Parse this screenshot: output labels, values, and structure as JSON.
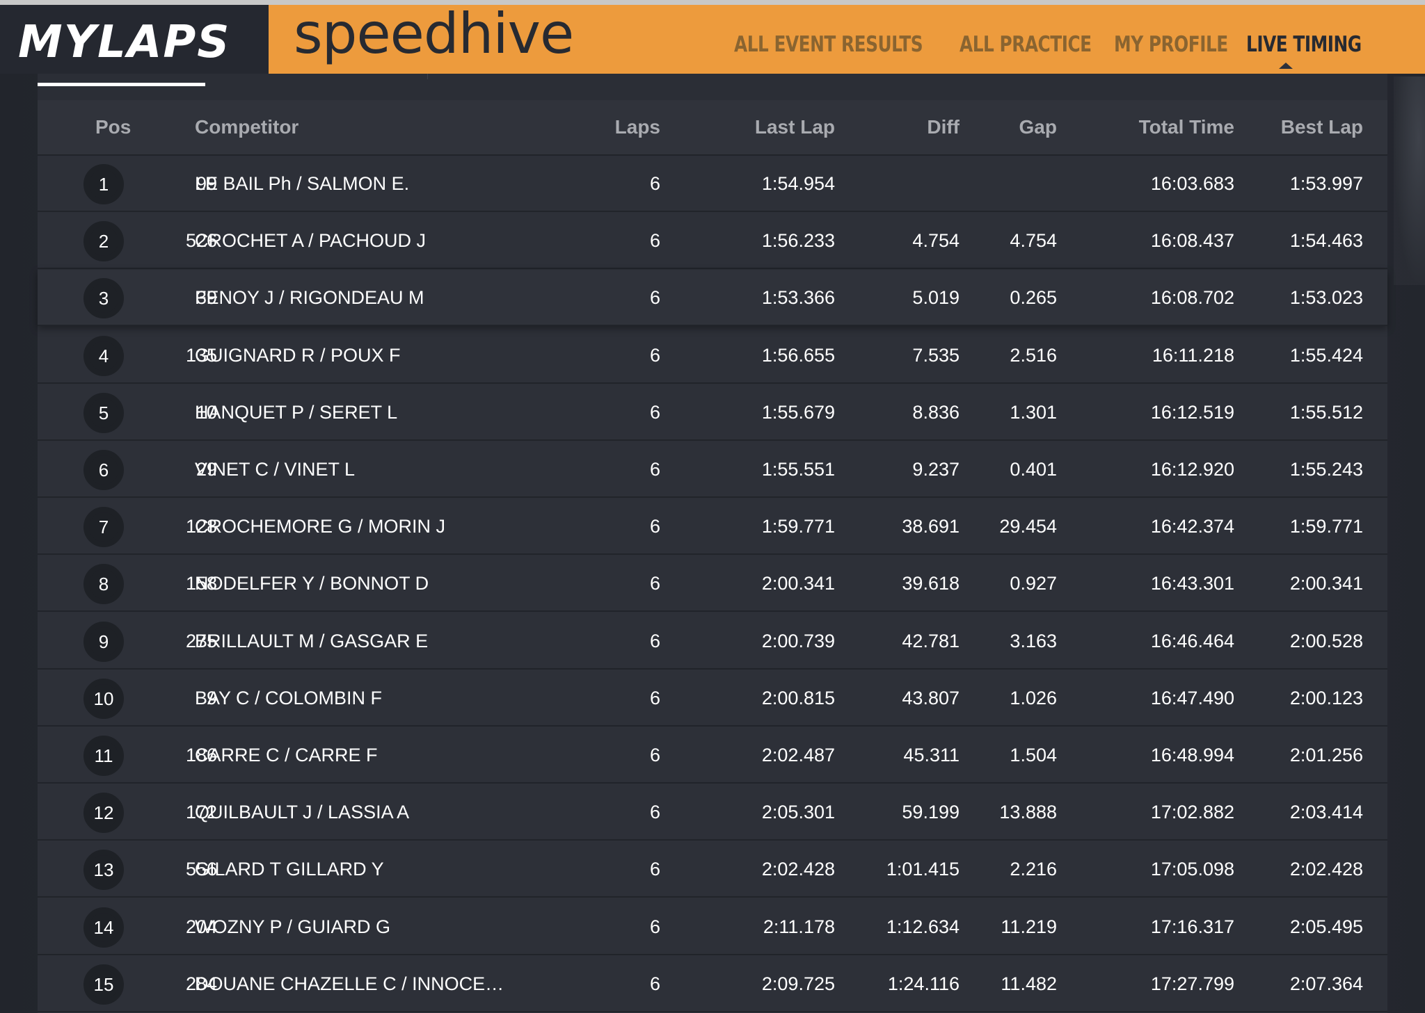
{
  "brand": {
    "name": "MYLAPS",
    "product": "speedhive"
  },
  "nav": {
    "items": [
      "ALL EVENT RESULTS",
      "ALL PRACTICE",
      "MY PROFILE",
      "LIVE TIMING"
    ],
    "active": "LIVE TIMING"
  },
  "colors": {
    "accent": "#ed9b3d",
    "background": "#2d3038"
  },
  "table": {
    "headers": {
      "pos": "Pos",
      "competitor": "Competitor",
      "laps": "Laps",
      "last_lap": "Last Lap",
      "diff": "Diff",
      "gap": "Gap",
      "total_time": "Total Time",
      "best_lap": "Best Lap"
    },
    "rows": [
      {
        "pos": "1",
        "num": "99",
        "competitor": "LE BAIL Ph / SALMON E.",
        "laps": "6",
        "last_lap": "1:54.954",
        "diff": "",
        "gap": "",
        "total_time": "16:03.683",
        "best_lap": "1:53.997"
      },
      {
        "pos": "2",
        "num": "526",
        "competitor": "CROCHET A / PACHOUD J",
        "laps": "6",
        "last_lap": "1:56.233",
        "diff": "4.754",
        "gap": "4.754",
        "total_time": "16:08.437",
        "best_lap": "1:54.463"
      },
      {
        "pos": "3",
        "num": "39",
        "competitor": "FENOY J / RIGONDEAU M",
        "laps": "6",
        "last_lap": "1:53.366",
        "diff": "5.019",
        "gap": "0.265",
        "total_time": "16:08.702",
        "best_lap": "1:53.023"
      },
      {
        "pos": "4",
        "num": "135",
        "competitor": "GUIGNARD R / POUX F",
        "laps": "6",
        "last_lap": "1:56.655",
        "diff": "7.535",
        "gap": "2.516",
        "total_time": "16:11.218",
        "best_lap": "1:55.424"
      },
      {
        "pos": "5",
        "num": "10",
        "competitor": "HANQUET P / SERET L",
        "laps": "6",
        "last_lap": "1:55.679",
        "diff": "8.836",
        "gap": "1.301",
        "total_time": "16:12.519",
        "best_lap": "1:55.512"
      },
      {
        "pos": "6",
        "num": "29",
        "competitor": "VINET C / VINET L",
        "laps": "6",
        "last_lap": "1:55.551",
        "diff": "9.237",
        "gap": "0.401",
        "total_time": "16:12.920",
        "best_lap": "1:55.243"
      },
      {
        "pos": "7",
        "num": "128",
        "competitor": "CROCHEMORE G / MORIN J",
        "laps": "6",
        "last_lap": "1:59.771",
        "diff": "38.691",
        "gap": "29.454",
        "total_time": "16:42.374",
        "best_lap": "1:59.771"
      },
      {
        "pos": "8",
        "num": "158",
        "competitor": "NODELFER Y / BONNOT D",
        "laps": "6",
        "last_lap": "2:00.341",
        "diff": "39.618",
        "gap": "0.927",
        "total_time": "16:43.301",
        "best_lap": "2:00.341"
      },
      {
        "pos": "9",
        "num": "275",
        "competitor": "BRILLAULT M / GASGAR E",
        "laps": "6",
        "last_lap": "2:00.739",
        "diff": "42.781",
        "gap": "3.163",
        "total_time": "16:46.464",
        "best_lap": "2:00.528"
      },
      {
        "pos": "10",
        "num": "9",
        "competitor": "BAY C / COLOMBIN F",
        "laps": "6",
        "last_lap": "2:00.815",
        "diff": "43.807",
        "gap": "1.026",
        "total_time": "16:47.490",
        "best_lap": "2:00.123"
      },
      {
        "pos": "11",
        "num": "186",
        "competitor": "CARRE C / CARRE F",
        "laps": "6",
        "last_lap": "2:02.487",
        "diff": "45.311",
        "gap": "1.504",
        "total_time": "16:48.994",
        "best_lap": "2:01.256"
      },
      {
        "pos": "12",
        "num": "172",
        "competitor": "QUILBAULT J / LASSIA A",
        "laps": "6",
        "last_lap": "2:05.301",
        "diff": "59.199",
        "gap": "13.888",
        "total_time": "17:02.882",
        "best_lap": "2:03.414"
      },
      {
        "pos": "13",
        "num": "556",
        "competitor": "GILARD T GILLARD Y",
        "laps": "6",
        "last_lap": "2:02.428",
        "diff": "1:01.415",
        "gap": "2.216",
        "total_time": "17:05.098",
        "best_lap": "2:02.428"
      },
      {
        "pos": "14",
        "num": "204",
        "competitor": "WOZNY P / GUIARD G",
        "laps": "6",
        "last_lap": "2:11.178",
        "diff": "1:12.634",
        "gap": "11.219",
        "total_time": "17:16.317",
        "best_lap": "2:05.495"
      },
      {
        "pos": "15",
        "num": "284",
        "competitor": "DOUANE CHAZELLE C / INNOCE…",
        "laps": "6",
        "last_lap": "2:09.725",
        "diff": "1:24.116",
        "gap": "11.482",
        "total_time": "17:27.799",
        "best_lap": "2:07.364"
      }
    ]
  }
}
